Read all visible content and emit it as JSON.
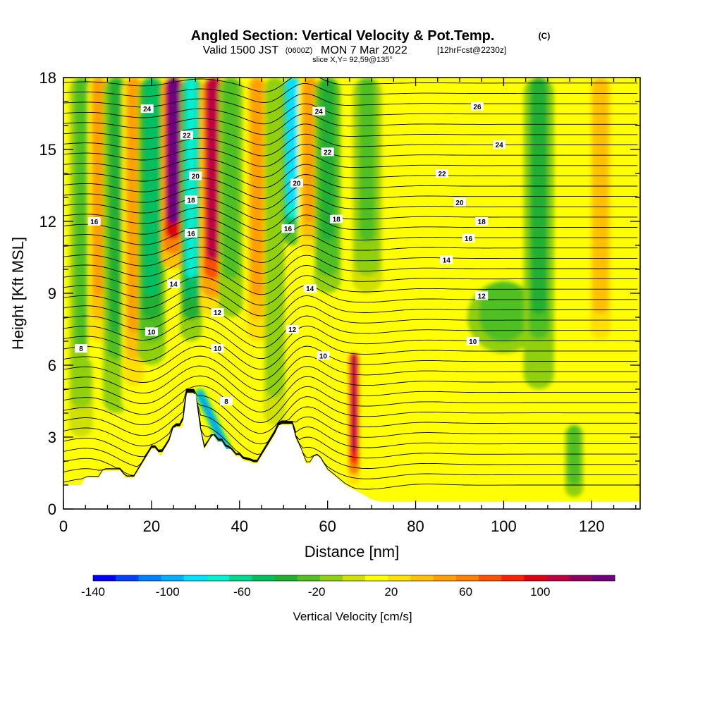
{
  "header": {
    "title": "Angled Section: Vertical Velocity & Pot.Temp.",
    "copyright": "(C)",
    "valid_prefix": "Valid 1500 JST",
    "valid_zulu": "(0600Z)",
    "valid_date": "MON 7 Mar 2022",
    "forecast": "[12hrFcst@2230z]",
    "slice": "slice X,Y= 92,59@135°"
  },
  "chart_data": {
    "type": "heatmap",
    "title": "Angled Section: Vertical Velocity & Pot.Temp.",
    "xlabel": "Distance [nm]",
    "ylabel": "Height [Kft MSL]",
    "xlim": [
      0,
      131
    ],
    "ylim": [
      0,
      18
    ],
    "x_ticks": [
      0,
      20,
      40,
      60,
      80,
      100,
      120
    ],
    "y_ticks": [
      0,
      3,
      6,
      9,
      12,
      15,
      18
    ],
    "colorbar": {
      "label": "Vertical Velocity [cm/s]",
      "tick_labels": [
        "-140",
        "-100",
        "-60",
        "-20",
        "20",
        "60",
        "100"
      ],
      "tick_values": [
        -140,
        -100,
        -60,
        -20,
        20,
        60,
        100
      ],
      "range": [
        -140,
        140
      ],
      "colors": [
        "#0000ff",
        "#0040ff",
        "#0080ff",
        "#00b0ff",
        "#00e0ff",
        "#00f0d0",
        "#00d890",
        "#00c060",
        "#20b030",
        "#50c020",
        "#90d010",
        "#d0e000",
        "#ffff00",
        "#ffe000",
        "#ffc000",
        "#ffa000",
        "#ff8000",
        "#ff5000",
        "#ff2000",
        "#e00010",
        "#c00040",
        "#900060",
        "#700080"
      ]
    },
    "terrain_profile": {
      "x": [
        0,
        4,
        5,
        8,
        9,
        13,
        14,
        16,
        17,
        18,
        19,
        20,
        21,
        22,
        23,
        24,
        25,
        26,
        27,
        28,
        29,
        30,
        31,
        32,
        33,
        34,
        35,
        36,
        37,
        38,
        39,
        40,
        41,
        42,
        43,
        44,
        45,
        46,
        47,
        48,
        49,
        50,
        51,
        52,
        53,
        54,
        55,
        56,
        57,
        58,
        59,
        60,
        62,
        64,
        66,
        68,
        70,
        72,
        131
      ],
      "y": [
        1.0,
        1.0,
        1.3,
        1.3,
        1.6,
        1.6,
        1.3,
        1.3,
        1.6,
        1.9,
        2.2,
        2.5,
        2.5,
        2.2,
        2.5,
        2.8,
        3.4,
        3.4,
        3.4,
        4.8,
        4.8,
        4.8,
        3.4,
        2.5,
        2.8,
        3.1,
        2.8,
        2.8,
        2.5,
        2.5,
        2.2,
        2.2,
        2.0,
        2.0,
        1.9,
        1.9,
        2.2,
        2.5,
        2.8,
        3.1,
        3.5,
        3.5,
        3.5,
        3.5,
        2.8,
        2.5,
        1.9,
        1.9,
        2.2,
        2.2,
        1.9,
        1.6,
        1.3,
        1.0,
        0.8,
        0.6,
        0.4,
        0.3,
        0.3
      ]
    },
    "vertical_velocity_features": [
      {
        "x": 4,
        "y_bottom": 3.0,
        "y_top": 18,
        "width": 2.0,
        "value": -20
      },
      {
        "x": 8,
        "y_bottom": 6.0,
        "y_top": 18,
        "width": 1.8,
        "value": 50
      },
      {
        "x": 12,
        "y_bottom": 4.0,
        "y_top": 18,
        "width": 2.2,
        "value": -35
      },
      {
        "x": 16,
        "y_bottom": 4.0,
        "y_top": 18,
        "width": 2.0,
        "value": 45
      },
      {
        "x": 20,
        "y_bottom": 6.0,
        "y_top": 18,
        "width": 2.3,
        "value": -50
      },
      {
        "x": 25,
        "y_bottom": 10.0,
        "y_top": 18,
        "width": 2.0,
        "value": 130
      },
      {
        "x": 29,
        "y_bottom": 7.0,
        "y_top": 18,
        "width": 1.8,
        "value": -70
      },
      {
        "x": 34,
        "y_bottom": 8.0,
        "y_top": 18,
        "width": 2.2,
        "value": 105
      },
      {
        "x": 38,
        "y_bottom": 8.0,
        "y_top": 18,
        "width": 2.0,
        "value": -25
      },
      {
        "x": 44,
        "y_bottom": 6.0,
        "y_top": 18,
        "width": 2.0,
        "value": 45
      },
      {
        "x": 48,
        "y_bottom": 3.5,
        "y_top": 18,
        "width": 1.8,
        "value": -15
      },
      {
        "x": 52,
        "y_bottom": 11.0,
        "y_top": 18,
        "width": 1.6,
        "value": -90
      },
      {
        "x": 56,
        "y_bottom": 10.0,
        "y_top": 18,
        "width": 2.0,
        "value": 50
      },
      {
        "x": 60,
        "y_bottom": 9.0,
        "y_top": 18,
        "width": 2.2,
        "value": -40
      },
      {
        "x": 66,
        "y_bottom": 1.0,
        "y_top": 6.5,
        "width": 1.0,
        "value": 110
      },
      {
        "x": 69,
        "y_bottom": 9.0,
        "y_top": 18,
        "width": 2.5,
        "value": -20
      },
      {
        "x": 100,
        "y_bottom": 6.5,
        "y_top": 9.5,
        "width": 6.0,
        "value": -30
      },
      {
        "x": 108,
        "y_bottom": 5.0,
        "y_top": 18,
        "width": 2.5,
        "value": -35
      },
      {
        "x": 116,
        "y_bottom": 0.5,
        "y_top": 3.5,
        "width": 1.5,
        "value": -30
      },
      {
        "x": 122,
        "y_bottom": 5.0,
        "y_top": 18,
        "width": 2.5,
        "value": 35
      }
    ],
    "downslope_streak": {
      "x_start": 31,
      "y_start": 4.8,
      "x_end": 37,
      "y_end": 2.5,
      "value": -110
    },
    "isentrope_labels": [
      {
        "text": "24",
        "x": 19,
        "y": 16.7
      },
      {
        "text": "22",
        "x": 28,
        "y": 15.6
      },
      {
        "text": "20",
        "x": 30,
        "y": 13.9
      },
      {
        "text": "18",
        "x": 29,
        "y": 12.9
      },
      {
        "text": "16",
        "x": 29,
        "y": 11.5
      },
      {
        "text": "14",
        "x": 25,
        "y": 9.4
      },
      {
        "text": "12",
        "x": 35,
        "y": 8.2
      },
      {
        "text": "10",
        "x": 20,
        "y": 7.4
      },
      {
        "text": "8",
        "x": 4,
        "y": 6.7
      },
      {
        "text": "10",
        "x": 35,
        "y": 6.7
      },
      {
        "text": "8",
        "x": 37,
        "y": 4.5
      },
      {
        "text": "16",
        "x": 7,
        "y": 12.0
      },
      {
        "text": "24",
        "x": 58,
        "y": 16.6
      },
      {
        "text": "22",
        "x": 60,
        "y": 14.9
      },
      {
        "text": "20",
        "x": 53,
        "y": 13.6
      },
      {
        "text": "18",
        "x": 62,
        "y": 12.1
      },
      {
        "text": "16",
        "x": 51,
        "y": 11.7
      },
      {
        "text": "14",
        "x": 56,
        "y": 9.2
      },
      {
        "text": "12",
        "x": 52,
        "y": 7.5
      },
      {
        "text": "10",
        "x": 59,
        "y": 6.4
      },
      {
        "text": "26",
        "x": 94,
        "y": 16.8
      },
      {
        "text": "24",
        "x": 99,
        "y": 15.2
      },
      {
        "text": "22",
        "x": 86,
        "y": 14.0
      },
      {
        "text": "20",
        "x": 90,
        "y": 12.8
      },
      {
        "text": "18",
        "x": 95,
        "y": 12.0
      },
      {
        "text": "16",
        "x": 92,
        "y": 11.3
      },
      {
        "text": "14",
        "x": 87,
        "y": 10.4
      },
      {
        "text": "12",
        "x": 95,
        "y": 8.9
      },
      {
        "text": "10",
        "x": 93,
        "y": 7.0
      }
    ]
  }
}
